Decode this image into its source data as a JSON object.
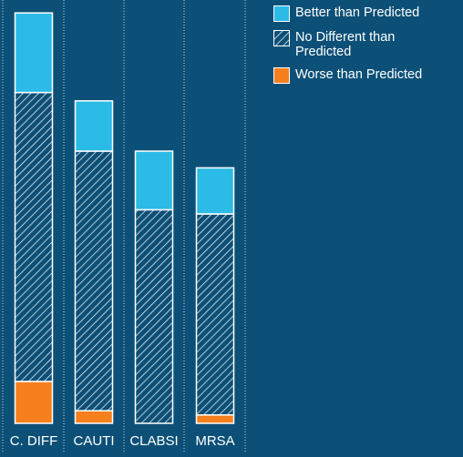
{
  "chart_data": {
    "type": "bar",
    "stacked": true,
    "categories": [
      "C. DIFF",
      "CAUTI",
      "CLABSI",
      "MRSA"
    ],
    "series": [
      {
        "name": "Worse than Predicted",
        "values": [
          10,
          3,
          0,
          2
        ],
        "color": "#f7801e",
        "pattern": "solid"
      },
      {
        "name": "No Different than Predicted",
        "values": [
          69,
          62,
          51,
          48
        ],
        "color": "#0d5077",
        "pattern": "hatch"
      },
      {
        "name": "Better than Predicted",
        "values": [
          19,
          12,
          14,
          11
        ],
        "color": "#2bbbe6",
        "pattern": "solid"
      }
    ],
    "ylim": [
      0,
      100
    ],
    "grid": "dotted vertical separators",
    "legend_position": "top-right",
    "title": "",
    "xlabel": "",
    "ylabel": ""
  },
  "legend": {
    "items": [
      {
        "label": "Better than Predicted",
        "icon": "solid-swatch",
        "color": "#2bbbe6"
      },
      {
        "label": "No Different than Predicted",
        "icon": "hatch-swatch",
        "color": "#0d5077"
      },
      {
        "label": "Worse than Predicted",
        "icon": "solid-swatch",
        "color": "#f7801e"
      }
    ]
  }
}
